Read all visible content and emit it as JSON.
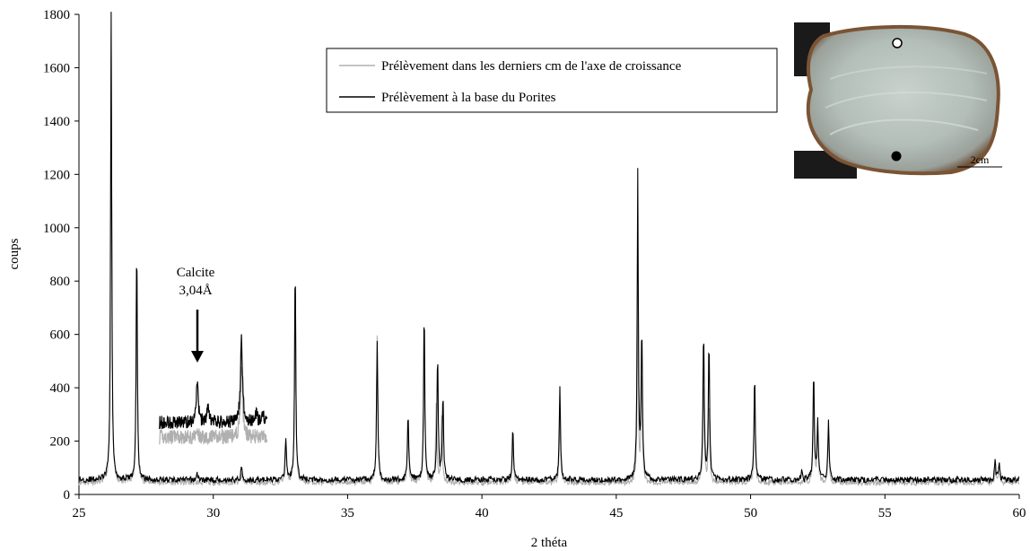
{
  "chart_data": {
    "type": "line",
    "title": "",
    "xlabel": "2 théta",
    "ylabel": "coups",
    "xlim": [
      25,
      60
    ],
    "ylim": [
      0,
      1800
    ],
    "x_ticks": [
      25,
      30,
      35,
      40,
      45,
      50,
      55,
      60
    ],
    "y_ticks": [
      0,
      200,
      400,
      600,
      800,
      1000,
      1200,
      1400,
      1600,
      1800
    ],
    "legend_position": "top-right",
    "series": [
      {
        "name": "Prélèvement dans les derniers cm de l'axe de croissance",
        "color": "#b0b0b0",
        "baseline": 45,
        "peaks": [
          {
            "x": 26.2,
            "y": 1660
          },
          {
            "x": 27.15,
            "y": 880
          },
          {
            "x": 31.05,
            "y": 30
          },
          {
            "x": 32.7,
            "y": 150
          },
          {
            "x": 33.05,
            "y": 820
          },
          {
            "x": 36.1,
            "y": 540
          },
          {
            "x": 37.25,
            "y": 200
          },
          {
            "x": 37.85,
            "y": 480
          },
          {
            "x": 38.3,
            "y": 300
          },
          {
            "x": 38.5,
            "y": 250
          },
          {
            "x": 41.15,
            "y": 160
          },
          {
            "x": 42.9,
            "y": 260
          },
          {
            "x": 45.8,
            "y": 700
          },
          {
            "x": 45.95,
            "y": 420
          },
          {
            "x": 48.25,
            "y": 380
          },
          {
            "x": 48.45,
            "y": 300
          },
          {
            "x": 50.15,
            "y": 330
          },
          {
            "x": 52.35,
            "y": 320
          },
          {
            "x": 52.5,
            "y": 200
          },
          {
            "x": 52.9,
            "y": 180
          },
          {
            "x": 59.1,
            "y": 50
          },
          {
            "x": 59.25,
            "y": 45
          }
        ]
      },
      {
        "name": "Prélèvement à la base du Porites",
        "color": "#000000",
        "baseline": 55,
        "peaks": [
          {
            "x": 26.2,
            "y": 1760
          },
          {
            "x": 27.15,
            "y": 910
          },
          {
            "x": 29.4,
            "y": 25
          },
          {
            "x": 31.05,
            "y": 55
          },
          {
            "x": 32.7,
            "y": 160
          },
          {
            "x": 33.05,
            "y": 840
          },
          {
            "x": 36.1,
            "y": 520
          },
          {
            "x": 37.25,
            "y": 250
          },
          {
            "x": 37.85,
            "y": 660
          },
          {
            "x": 38.35,
            "y": 470
          },
          {
            "x": 38.55,
            "y": 320
          },
          {
            "x": 41.15,
            "y": 200
          },
          {
            "x": 42.9,
            "y": 345
          },
          {
            "x": 45.8,
            "y": 1140
          },
          {
            "x": 45.95,
            "y": 560
          },
          {
            "x": 48.25,
            "y": 560
          },
          {
            "x": 48.45,
            "y": 520
          },
          {
            "x": 50.15,
            "y": 400
          },
          {
            "x": 51.9,
            "y": 30
          },
          {
            "x": 52.35,
            "y": 410
          },
          {
            "x": 52.5,
            "y": 210
          },
          {
            "x": 52.9,
            "y": 230
          },
          {
            "x": 59.1,
            "y": 70
          },
          {
            "x": 59.25,
            "y": 60
          }
        ]
      }
    ],
    "inset_zoom": {
      "x_range": [
        28,
        32
      ],
      "gray": {
        "baseline": 215,
        "peaks": [
          {
            "x": 29.4,
            "y": 20
          },
          {
            "x": 31.05,
            "y": 270
          }
        ]
      },
      "black": {
        "baseline": 270,
        "peaks": [
          {
            "x": 29.4,
            "y": 150
          },
          {
            "x": 29.8,
            "y": 50
          },
          {
            "x": 31.05,
            "y": 310
          },
          {
            "x": 31.6,
            "y": 30
          },
          {
            "x": 31.85,
            "y": 40
          }
        ]
      }
    },
    "annotations": [
      {
        "text_line1": "Calcite",
        "text_line2": "3,04Å",
        "points_to_x": 29.4,
        "points_to_y": 470
      }
    ]
  },
  "inset_photo": {
    "scale_label": "2cm",
    "markers": [
      "open-circle",
      "filled-circle"
    ]
  }
}
